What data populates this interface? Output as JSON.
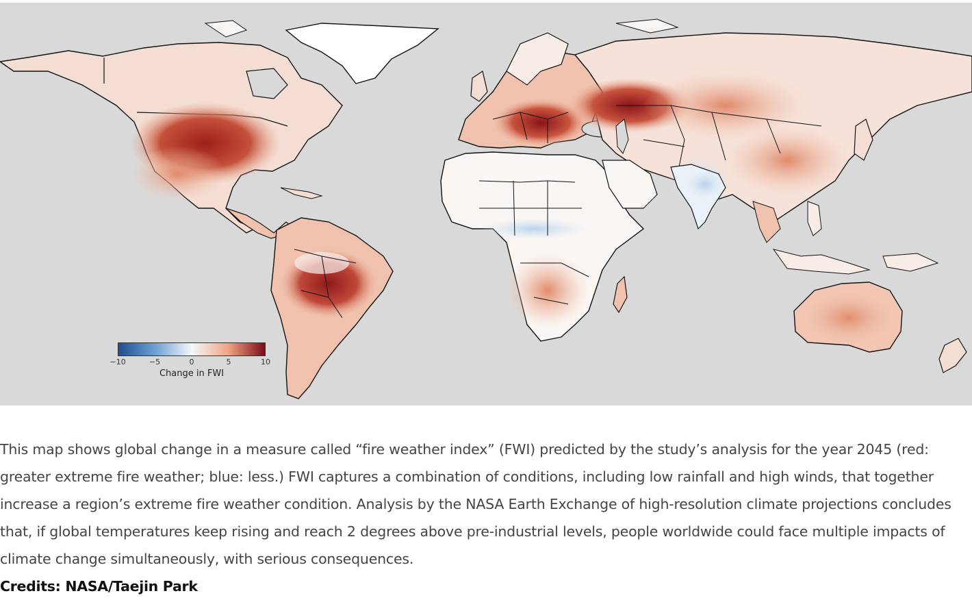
{
  "map": {
    "legend": {
      "label": "Change in FWI",
      "ticks": [
        "−10",
        "−5",
        "0",
        "5",
        "10"
      ],
      "tick_values": [
        -10,
        -5,
        0,
        5,
        10
      ],
      "range": [
        -10,
        10
      ],
      "colormap": [
        "#1f4e94",
        "#6d9fd0",
        "#f4f7fb",
        "#f0a483",
        "#7a0c18"
      ]
    },
    "colors": {
      "ocean": "#d9d9d9",
      "land_neutral": "#f8f4f2",
      "light_red": "#f2c6b2",
      "medium_red": "#d97a5c",
      "dark_red": "#a8281f",
      "light_blue": "#cfe1f2",
      "border": "#111111"
    }
  },
  "caption": {
    "text": "This map shows global change in a measure called “fire weather index” (FWI) predicted by the study’s analysis for the year 2045 (red: greater extreme fire weather; blue: less.) FWI captures a combination of conditions, including low rainfall and high winds, that together increase a region’s extreme fire weather condition. Analysis by the NASA Earth Exchange of high-resolution climate projections concludes that, if global temperatures keep rising and reach 2 degrees above pre-industrial levels, people worldwide could face multiple impacts of climate change simultaneously, with serious consequences."
  },
  "credits": {
    "text": "Credits: NASA/Taejin Park"
  }
}
